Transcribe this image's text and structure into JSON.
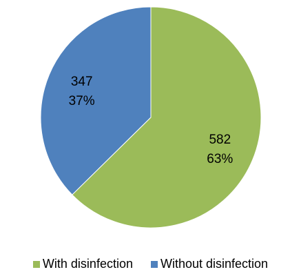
{
  "chart_data": {
    "type": "pie",
    "slices": [
      {
        "name": "With disinfection",
        "value": 582,
        "percent_label": "63%",
        "value_label": "582",
        "color": "#9BBB59"
      },
      {
        "name": "Without disinfection",
        "value": 347,
        "percent_label": "37%",
        "value_label": "347",
        "color": "#4F81BD"
      }
    ],
    "start_angle_deg": 0,
    "direction": "clockwise",
    "legend_position": "bottom"
  }
}
